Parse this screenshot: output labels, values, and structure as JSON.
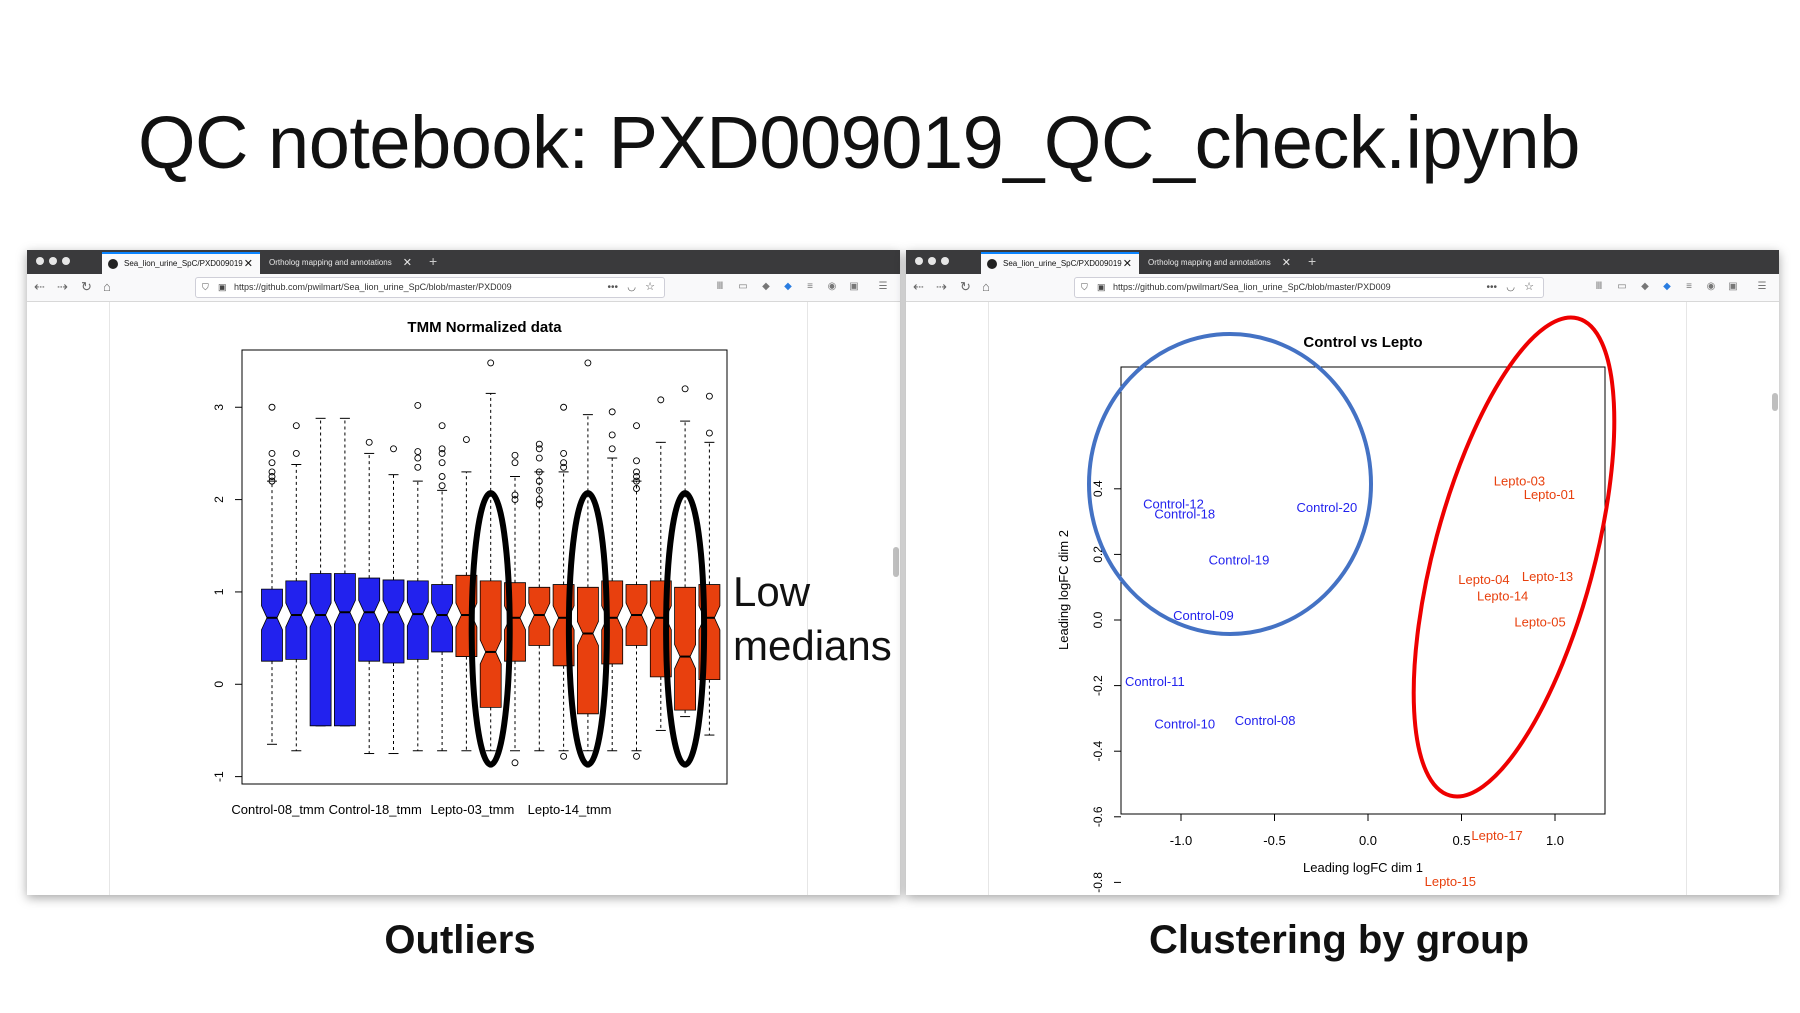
{
  "slide": {
    "title": "QC notebook: PXD009019_QC_check.ipynb",
    "caption_left": "Outliers",
    "caption_right": "Clustering by group",
    "annotation_line1": "Low",
    "annotation_line2": "medians"
  },
  "browser": {
    "tab_active": "Sea_lion_urine_SpC/PXD009019",
    "tab_inactive": "Ortholog mapping and annotations",
    "tab_close": "✕",
    "tab_new": "+",
    "url": "https://github.com/pwilmart/Sea_lion_urine_SpC/blob/master/PXD009",
    "more_glyph": "•••",
    "icons": [
      "back-arrow-icon",
      "forward-arrow-icon",
      "reload-icon",
      "home-icon",
      "shield-icon",
      "lock-icon",
      "page-actions-icon",
      "pocket-icon",
      "bookmark-star-icon",
      "library-icon",
      "sidebar-icon",
      "extension-icon",
      "menu-icon"
    ]
  },
  "colors": {
    "control": "#2222ee",
    "lepto": "#e8400e",
    "ellipse_blue": "#4472c4",
    "ellipse_red": "#ee0000",
    "highlight": "#000000"
  },
  "chart_data": [
    {
      "type": "box",
      "title": "TMM Normalized data",
      "ylim": [
        -1,
        3.5
      ],
      "y_ticks": [
        "-1",
        "0",
        "1",
        "2",
        "3"
      ],
      "x_tick_labels": [
        "Control-08_tmm",
        "Control-18_tmm",
        "Lepto-03_tmm",
        "Lepto-14_tmm"
      ],
      "boxes": [
        {
          "group": "control",
          "q1": 0.25,
          "median": 0.72,
          "q3": 1.03,
          "lower_whisker": -0.65,
          "upper_whisker": 2.2,
          "outliers": [
            2.2,
            2.25,
            2.3,
            2.4,
            2.5,
            3.0
          ]
        },
        {
          "group": "control",
          "q1": 0.27,
          "median": 0.75,
          "q3": 1.12,
          "lower_whisker": -0.72,
          "upper_whisker": 2.38,
          "outliers": [
            2.5,
            2.8
          ]
        },
        {
          "group": "control",
          "q1": -0.45,
          "median": 0.75,
          "q3": 1.2,
          "lower_whisker": -0.45,
          "upper_whisker": 2.88
        },
        {
          "group": "control",
          "q1": -0.45,
          "median": 0.78,
          "q3": 1.2,
          "lower_whisker": -0.45,
          "upper_whisker": 2.88
        },
        {
          "group": "control",
          "q1": 0.25,
          "median": 0.78,
          "q3": 1.15,
          "lower_whisker": -0.75,
          "upper_whisker": 2.5,
          "outliers": [
            2.62
          ]
        },
        {
          "group": "control",
          "q1": 0.23,
          "median": 0.78,
          "q3": 1.13,
          "lower_whisker": -0.75,
          "upper_whisker": 2.27,
          "outliers": [
            2.55
          ]
        },
        {
          "group": "control",
          "q1": 0.27,
          "median": 0.76,
          "q3": 1.12,
          "lower_whisker": -0.72,
          "upper_whisker": 2.2,
          "outliers": [
            2.35,
            2.45,
            2.52,
            3.02
          ]
        },
        {
          "group": "control",
          "q1": 0.35,
          "median": 0.75,
          "q3": 1.08,
          "lower_whisker": -0.72,
          "upper_whisker": 2.1,
          "outliers": [
            2.15,
            2.25,
            2.4,
            2.5,
            2.55,
            2.8
          ]
        },
        {
          "group": "lepto",
          "q1": 0.3,
          "median": 0.75,
          "q3": 1.18,
          "lower_whisker": -0.72,
          "upper_whisker": 2.3,
          "outliers": [
            2.65
          ]
        },
        {
          "group": "lepto",
          "q1": -0.25,
          "median": 0.35,
          "q3": 1.12,
          "lower_whisker": -0.72,
          "upper_whisker": 3.15,
          "outliers": [
            3.48
          ]
        },
        {
          "group": "lepto",
          "q1": 0.25,
          "median": 0.72,
          "q3": 1.1,
          "lower_whisker": -0.72,
          "upper_whisker": 2.25,
          "outliers": [
            2.0,
            2.05,
            2.4,
            2.48,
            -0.85
          ]
        },
        {
          "group": "lepto",
          "q1": 0.42,
          "median": 0.75,
          "q3": 1.05,
          "lower_whisker": -0.72,
          "upper_whisker": 2.3,
          "outliers": [
            1.95,
            2.0,
            2.1,
            2.2,
            2.3,
            2.45,
            2.55,
            2.6
          ]
        },
        {
          "group": "lepto",
          "q1": 0.2,
          "median": 0.72,
          "q3": 1.08,
          "lower_whisker": -0.72,
          "upper_whisker": 2.3,
          "outliers": [
            2.35,
            2.4,
            2.5,
            3.0,
            -0.78
          ]
        },
        {
          "group": "lepto",
          "q1": -0.32,
          "median": 0.55,
          "q3": 1.05,
          "lower_whisker": -0.72,
          "upper_whisker": 2.92,
          "outliers": [
            3.48
          ]
        },
        {
          "group": "lepto",
          "q1": 0.22,
          "median": 0.72,
          "q3": 1.12,
          "lower_whisker": -0.72,
          "upper_whisker": 2.45,
          "outliers": [
            2.55,
            2.7,
            2.95
          ]
        },
        {
          "group": "lepto",
          "q1": 0.42,
          "median": 0.75,
          "q3": 1.08,
          "lower_whisker": -0.72,
          "upper_whisker": 2.2,
          "outliers": [
            2.12,
            2.2,
            2.25,
            2.3,
            2.42,
            2.8,
            -0.78
          ]
        },
        {
          "group": "lepto",
          "q1": 0.08,
          "median": 0.72,
          "q3": 1.12,
          "lower_whisker": -0.5,
          "upper_whisker": 2.62,
          "outliers": [
            3.08
          ]
        },
        {
          "group": "lepto",
          "q1": -0.28,
          "median": 0.3,
          "q3": 1.05,
          "lower_whisker": -0.35,
          "upper_whisker": 2.85,
          "outliers": [
            3.2
          ]
        },
        {
          "group": "lepto",
          "q1": 0.05,
          "median": 0.72,
          "q3": 1.08,
          "lower_whisker": -0.55,
          "upper_whisker": 2.62,
          "outliers": [
            2.72,
            3.12
          ]
        }
      ],
      "highlighted_boxes": [
        9,
        13,
        17
      ]
    },
    {
      "type": "scatter",
      "title": "Control vs Lepto",
      "xlabel": "Leading logFC dim 1",
      "ylabel": "Leading logFC dim 2",
      "xlim": [
        -1.35,
        1.25
      ],
      "ylim": [
        -0.86,
        0.46
      ],
      "x_ticks": [
        "-1.0",
        "-0.5",
        "0.0",
        "0.5",
        "1.0"
      ],
      "y_ticks": [
        "-0.8",
        "-0.6",
        "-0.4",
        "-0.2",
        "0.0",
        "0.2",
        "0.4"
      ],
      "points": [
        {
          "label": "Control-12",
          "x": -1.04,
          "y": 0.35,
          "group": "control"
        },
        {
          "label": "Control-18",
          "x": -0.98,
          "y": 0.32,
          "group": "control"
        },
        {
          "label": "Control-20",
          "x": -0.22,
          "y": 0.34,
          "group": "control"
        },
        {
          "label": "Control-19",
          "x": -0.69,
          "y": 0.18,
          "group": "control"
        },
        {
          "label": "Control-09",
          "x": -0.88,
          "y": 0.01,
          "group": "control"
        },
        {
          "label": "Control-11",
          "x": -1.14,
          "y": -0.19,
          "group": "control"
        },
        {
          "label": "Control-10",
          "x": -0.98,
          "y": -0.32,
          "group": "control"
        },
        {
          "label": "Control-08",
          "x": -0.55,
          "y": -0.31,
          "group": "control"
        },
        {
          "label": "Lepto-03",
          "x": 0.81,
          "y": 0.42,
          "group": "lepto"
        },
        {
          "label": "Lepto-01",
          "x": 0.97,
          "y": 0.38,
          "group": "lepto"
        },
        {
          "label": "Lepto-04",
          "x": 0.62,
          "y": 0.12,
          "group": "lepto"
        },
        {
          "label": "Lepto-13",
          "x": 0.96,
          "y": 0.13,
          "group": "lepto"
        },
        {
          "label": "Lepto-14",
          "x": 0.72,
          "y": 0.07,
          "group": "lepto"
        },
        {
          "label": "Lepto-05",
          "x": 0.92,
          "y": -0.01,
          "group": "lepto"
        },
        {
          "label": "Lepto-17",
          "x": 0.69,
          "y": -0.66,
          "group": "lepto"
        },
        {
          "label": "Lepto-15",
          "x": 0.44,
          "y": -0.8,
          "group": "lepto"
        }
      ]
    }
  ]
}
